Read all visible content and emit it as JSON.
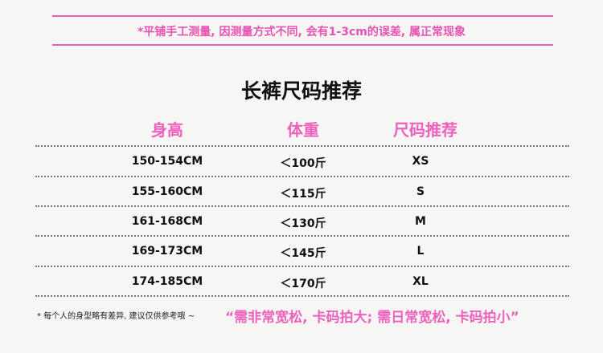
{
  "note": "*平铺手工测量, 因测量方式不同, 会有1-3cm的误差, 属正常现象",
  "title": "长裤尺码推荐",
  "headers": [
    "身高",
    "体重",
    "尺码推荐"
  ],
  "rows": [
    [
      "150-154CM",
      "＜100斤",
      "XS"
    ],
    [
      "155-160CM",
      "＜115斤",
      "S"
    ],
    [
      "161-168CM",
      "＜130斤",
      "M"
    ],
    [
      "169-173CM",
      "＜145斤",
      "L"
    ],
    [
      "174-185CM",
      "＜170斤",
      "XL"
    ]
  ],
  "footer": {
    "small": "* 每个人的身型略有差异,  建议仅供参考哦 ~",
    "highlight": "“需非常宽松, 卡码拍大; 需日常宽松, 卡码拍小”"
  },
  "colors": {
    "accent": "#e653b3",
    "text": "#111111"
  }
}
